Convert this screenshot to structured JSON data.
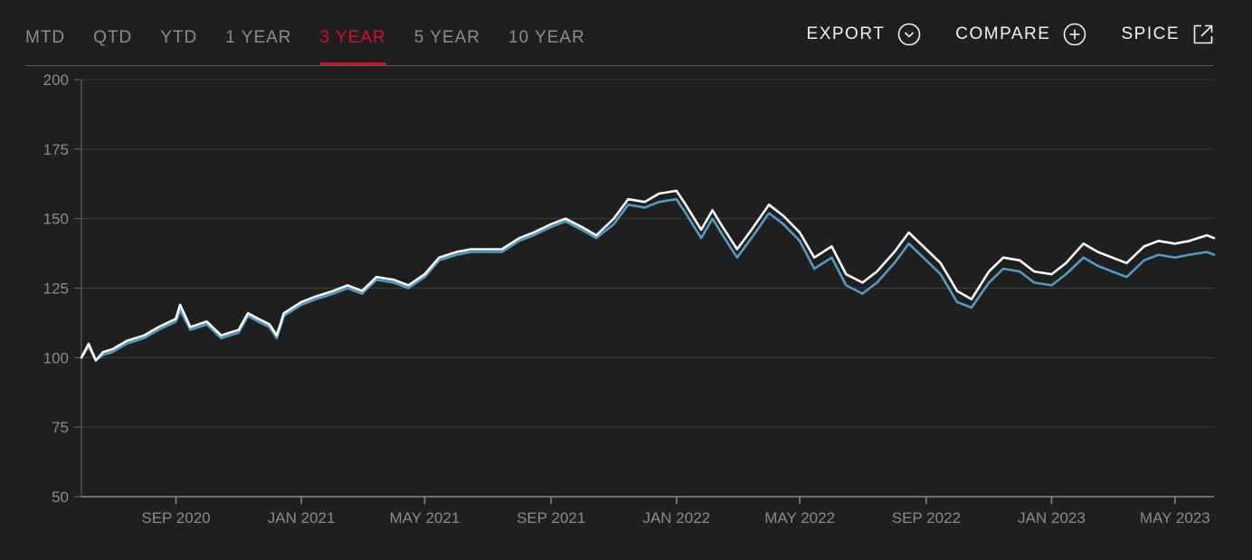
{
  "tabs": [
    {
      "label": "MTD",
      "active": false
    },
    {
      "label": "QTD",
      "active": false
    },
    {
      "label": "YTD",
      "active": false
    },
    {
      "label": "1 YEAR",
      "active": false
    },
    {
      "label": "3 YEAR",
      "active": true
    },
    {
      "label": "5 YEAR",
      "active": false
    },
    {
      "label": "10 YEAR",
      "active": false
    }
  ],
  "actions": {
    "export": {
      "label": "EXPORT",
      "icon": "chevron-circle-down-icon"
    },
    "compare": {
      "label": "COMPARE",
      "icon": "plus-circle-icon"
    },
    "spice": {
      "label": "SPICE",
      "icon": "external-link-icon"
    }
  },
  "colors": {
    "background": "#1f1f1f",
    "accent": "#d0102b",
    "series_white": "#ffffff",
    "series_blue": "#4f9cc9",
    "grid": "#3e3e3e",
    "tick_text": "#8c8c8c"
  },
  "chart_data": {
    "type": "line",
    "grid": true,
    "legend": "none",
    "xlim": [
      "2020-06-01",
      "2023-06-08"
    ],
    "ylim": [
      50,
      200
    ],
    "yticks": [
      50,
      75,
      100,
      125,
      150,
      175,
      200
    ],
    "xticks": [
      {
        "date": "2020-09-01",
        "label": "SEP 2020"
      },
      {
        "date": "2021-01-01",
        "label": "JAN 2021"
      },
      {
        "date": "2021-05-01",
        "label": "MAY 2021"
      },
      {
        "date": "2021-09-01",
        "label": "SEP 2021"
      },
      {
        "date": "2022-01-01",
        "label": "JAN 2022"
      },
      {
        "date": "2022-05-01",
        "label": "MAY 2022"
      },
      {
        "date": "2022-09-01",
        "label": "SEP 2022"
      },
      {
        "date": "2023-01-01",
        "label": "JAN 2023"
      },
      {
        "date": "2023-05-01",
        "label": "MAY 2023"
      }
    ],
    "series": [
      {
        "color": "#ffffff",
        "points": [
          [
            "2020-06-01",
            100
          ],
          [
            "2020-06-08",
            105
          ],
          [
            "2020-06-15",
            99
          ],
          [
            "2020-06-22",
            102
          ],
          [
            "2020-07-01",
            103
          ],
          [
            "2020-07-15",
            106
          ],
          [
            "2020-08-01",
            108
          ],
          [
            "2020-08-15",
            111
          ],
          [
            "2020-09-01",
            114
          ],
          [
            "2020-09-05",
            119
          ],
          [
            "2020-09-15",
            111
          ],
          [
            "2020-10-01",
            113
          ],
          [
            "2020-10-15",
            108
          ],
          [
            "2020-11-01",
            110
          ],
          [
            "2020-11-10",
            116
          ],
          [
            "2020-11-20",
            114
          ],
          [
            "2020-12-01",
            112
          ],
          [
            "2020-12-08",
            108
          ],
          [
            "2020-12-15",
            116
          ],
          [
            "2021-01-01",
            120
          ],
          [
            "2021-01-15",
            122
          ],
          [
            "2021-02-01",
            124
          ],
          [
            "2021-02-15",
            126
          ],
          [
            "2021-03-01",
            124
          ],
          [
            "2021-03-15",
            129
          ],
          [
            "2021-04-01",
            128
          ],
          [
            "2021-04-15",
            126
          ],
          [
            "2021-05-01",
            130
          ],
          [
            "2021-05-15",
            136
          ],
          [
            "2021-06-01",
            138
          ],
          [
            "2021-06-15",
            139
          ],
          [
            "2021-07-01",
            139
          ],
          [
            "2021-07-15",
            139
          ],
          [
            "2021-08-01",
            143
          ],
          [
            "2021-08-15",
            145
          ],
          [
            "2021-09-01",
            148
          ],
          [
            "2021-09-15",
            150
          ],
          [
            "2021-10-01",
            147
          ],
          [
            "2021-10-15",
            144
          ],
          [
            "2021-11-01",
            150
          ],
          [
            "2021-11-15",
            157
          ],
          [
            "2021-12-01",
            156
          ],
          [
            "2021-12-15",
            159
          ],
          [
            "2022-01-01",
            160
          ],
          [
            "2022-01-10",
            155
          ],
          [
            "2022-01-25",
            146
          ],
          [
            "2022-02-05",
            153
          ],
          [
            "2022-02-15",
            147
          ],
          [
            "2022-03-01",
            139
          ],
          [
            "2022-03-15",
            146
          ],
          [
            "2022-04-01",
            155
          ],
          [
            "2022-04-15",
            151
          ],
          [
            "2022-05-01",
            145
          ],
          [
            "2022-05-15",
            136
          ],
          [
            "2022-06-01",
            140
          ],
          [
            "2022-06-15",
            130
          ],
          [
            "2022-07-01",
            127
          ],
          [
            "2022-07-15",
            131
          ],
          [
            "2022-08-01",
            138
          ],
          [
            "2022-08-15",
            145
          ],
          [
            "2022-09-01",
            139
          ],
          [
            "2022-09-15",
            134
          ],
          [
            "2022-10-01",
            124
          ],
          [
            "2022-10-15",
            121
          ],
          [
            "2022-11-01",
            131
          ],
          [
            "2022-11-15",
            136
          ],
          [
            "2022-12-01",
            135
          ],
          [
            "2022-12-15",
            131
          ],
          [
            "2023-01-01",
            130
          ],
          [
            "2023-01-15",
            134
          ],
          [
            "2023-02-01",
            141
          ],
          [
            "2023-02-15",
            138
          ],
          [
            "2023-03-01",
            136
          ],
          [
            "2023-03-15",
            134
          ],
          [
            "2023-04-01",
            140
          ],
          [
            "2023-04-15",
            142
          ],
          [
            "2023-05-01",
            141
          ],
          [
            "2023-05-15",
            142
          ],
          [
            "2023-06-01",
            144
          ],
          [
            "2023-06-08",
            143
          ]
        ]
      },
      {
        "color": "#4f9cc9",
        "points": [
          [
            "2020-06-01",
            100
          ],
          [
            "2020-06-08",
            104
          ],
          [
            "2020-06-15",
            99
          ],
          [
            "2020-06-22",
            101
          ],
          [
            "2020-07-01",
            102
          ],
          [
            "2020-07-15",
            105
          ],
          [
            "2020-08-01",
            107
          ],
          [
            "2020-08-15",
            110
          ],
          [
            "2020-09-01",
            113
          ],
          [
            "2020-09-05",
            117
          ],
          [
            "2020-09-15",
            110
          ],
          [
            "2020-10-01",
            112
          ],
          [
            "2020-10-15",
            107
          ],
          [
            "2020-11-01",
            109
          ],
          [
            "2020-11-10",
            115
          ],
          [
            "2020-11-20",
            113
          ],
          [
            "2020-12-01",
            111
          ],
          [
            "2020-12-08",
            107
          ],
          [
            "2020-12-15",
            115
          ],
          [
            "2021-01-01",
            119
          ],
          [
            "2021-01-15",
            121
          ],
          [
            "2021-02-01",
            123
          ],
          [
            "2021-02-15",
            125
          ],
          [
            "2021-03-01",
            123
          ],
          [
            "2021-03-15",
            128
          ],
          [
            "2021-04-01",
            127
          ],
          [
            "2021-04-15",
            125
          ],
          [
            "2021-05-01",
            129
          ],
          [
            "2021-05-15",
            135
          ],
          [
            "2021-06-01",
            137
          ],
          [
            "2021-06-15",
            138
          ],
          [
            "2021-07-01",
            138
          ],
          [
            "2021-07-15",
            138
          ],
          [
            "2021-08-01",
            142
          ],
          [
            "2021-08-15",
            144
          ],
          [
            "2021-09-01",
            147
          ],
          [
            "2021-09-15",
            149
          ],
          [
            "2021-10-01",
            146
          ],
          [
            "2021-10-15",
            143
          ],
          [
            "2021-11-01",
            148
          ],
          [
            "2021-11-15",
            155
          ],
          [
            "2021-12-01",
            154
          ],
          [
            "2021-12-15",
            156
          ],
          [
            "2022-01-01",
            157
          ],
          [
            "2022-01-10",
            152
          ],
          [
            "2022-01-25",
            143
          ],
          [
            "2022-02-05",
            150
          ],
          [
            "2022-02-15",
            144
          ],
          [
            "2022-03-01",
            136
          ],
          [
            "2022-03-15",
            143
          ],
          [
            "2022-04-01",
            152
          ],
          [
            "2022-04-15",
            148
          ],
          [
            "2022-05-01",
            142
          ],
          [
            "2022-05-15",
            132
          ],
          [
            "2022-06-01",
            136
          ],
          [
            "2022-06-15",
            126
          ],
          [
            "2022-07-01",
            123
          ],
          [
            "2022-07-15",
            127
          ],
          [
            "2022-08-01",
            134
          ],
          [
            "2022-08-15",
            141
          ],
          [
            "2022-09-01",
            135
          ],
          [
            "2022-09-15",
            130
          ],
          [
            "2022-10-01",
            120
          ],
          [
            "2022-10-15",
            118
          ],
          [
            "2022-11-01",
            127
          ],
          [
            "2022-11-15",
            132
          ],
          [
            "2022-12-01",
            131
          ],
          [
            "2022-12-15",
            127
          ],
          [
            "2023-01-01",
            126
          ],
          [
            "2023-01-15",
            130
          ],
          [
            "2023-02-01",
            136
          ],
          [
            "2023-02-15",
            133
          ],
          [
            "2023-03-01",
            131
          ],
          [
            "2023-03-15",
            129
          ],
          [
            "2023-04-01",
            135
          ],
          [
            "2023-04-15",
            137
          ],
          [
            "2023-05-01",
            136
          ],
          [
            "2023-05-15",
            137
          ],
          [
            "2023-06-01",
            138
          ],
          [
            "2023-06-08",
            137
          ]
        ]
      }
    ]
  }
}
